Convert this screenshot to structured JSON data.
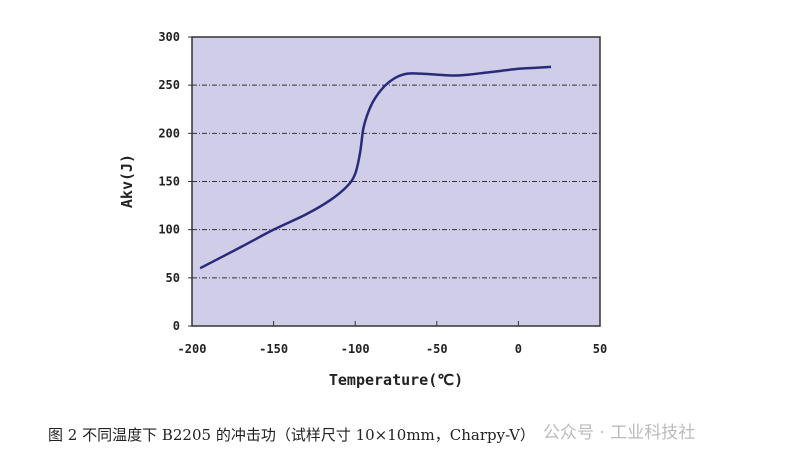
{
  "chart_data": {
    "type": "line",
    "title": "",
    "xlabel": "Temperature(℃)",
    "ylabel": "Akv(J)",
    "xlim": [
      -200,
      50
    ],
    "ylim": [
      0,
      300
    ],
    "xticks": [
      -200,
      -150,
      -100,
      -50,
      0,
      50
    ],
    "yticks": [
      0,
      50,
      100,
      150,
      200,
      250,
      300
    ],
    "grid": "horizontal dashed",
    "background": "#cfcde8",
    "line_color": "#2a2a7a",
    "series": [
      {
        "name": "B2205",
        "x": [
          -195,
          -170,
          -150,
          -130,
          -115,
          -105,
          -100,
          -97,
          -95,
          -92,
          -88,
          -82,
          -75,
          -68,
          -60,
          -50,
          -40,
          -30,
          -20,
          -10,
          0,
          10,
          20
        ],
        "y": [
          60,
          82,
          100,
          116,
          131,
          145,
          158,
          180,
          205,
          222,
          236,
          249,
          258,
          262,
          262,
          261,
          260,
          261,
          263,
          265,
          267,
          268,
          269
        ]
      }
    ]
  },
  "caption": "图 2  不同温度下 B2205 的冲击功（试样尺寸 10×10mm，Charpy-V）",
  "watermark": "公众号 · 工业科技社"
}
